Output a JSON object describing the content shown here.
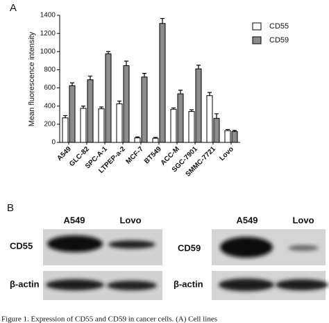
{
  "chart_data": {
    "type": "bar",
    "panel_label": "A",
    "y_label": "Mean fluorescence intensity",
    "categories": [
      "A549",
      "GLC-82",
      "SPC-A-1",
      "LTPEP-a-2",
      "MCF-7",
      "BT549",
      "ACC-M",
      "SGC-7901",
      "SMMC-7721",
      "Lovo"
    ],
    "series": [
      {
        "name": "CD55",
        "color": "#ffffff",
        "values": [
          270,
          375,
          370,
          425,
          50,
          45,
          365,
          340,
          515,
          130
        ],
        "errors": [
          25,
          25,
          20,
          30,
          10,
          10,
          15,
          20,
          35,
          12
        ]
      },
      {
        "name": "CD59",
        "color": "#8c8c8c",
        "values": [
          625,
          690,
          975,
          845,
          720,
          1310,
          535,
          810,
          265,
          120
        ],
        "errors": [
          30,
          40,
          25,
          50,
          40,
          55,
          40,
          40,
          50,
          12
        ]
      }
    ],
    "ylim": [
      0,
      1400
    ],
    "yticks": [
      0,
      200,
      400,
      600,
      800,
      1000,
      1200,
      1400
    ],
    "legend": "upper right"
  },
  "blots": {
    "panel_label": "B",
    "left": {
      "lanes": [
        "A549",
        "Lovo"
      ],
      "rows": [
        "CD55",
        "β-actin"
      ]
    },
    "right": {
      "lanes": [
        "A549",
        "Lovo"
      ],
      "rows": [
        "CD59",
        "β-actin"
      ]
    }
  },
  "caption": "Figure 1. Expression of CD55 and CD59 in cancer cells. (A) Cell lines"
}
